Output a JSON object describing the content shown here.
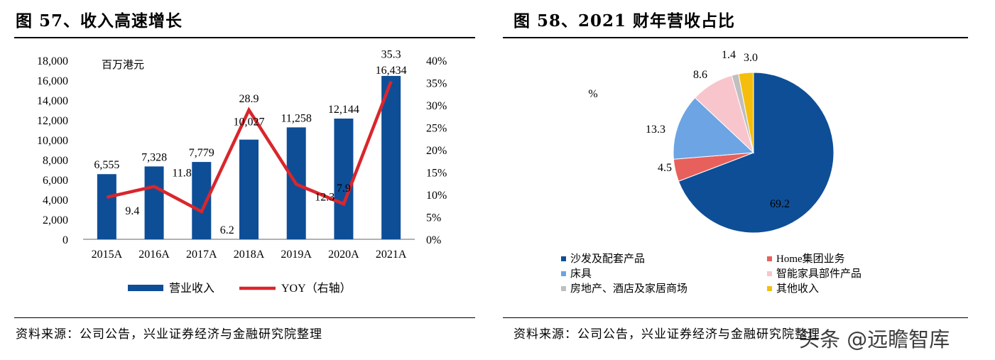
{
  "left": {
    "title": "图 57、收入高速增长",
    "source": "资料来源：公司公告，兴业证券经济与金融研究院整理"
  },
  "right": {
    "title": "图 58、2021 财年营收占比",
    "source": "资料来源：公司公告，兴业证券经济与金融研究院整理"
  },
  "watermark": "头条 @远瞻智库",
  "colors": {
    "bar": "#0E4E97",
    "line": "#D9262C",
    "pie": [
      "#0E4E97",
      "#E8605C",
      "#6DA4E3",
      "#F8C5CC",
      "#BFBFBF",
      "#F5BE0E"
    ]
  },
  "chart_data": [
    {
      "type": "bar",
      "categories": [
        "2015A",
        "2016A",
        "2017A",
        "2018A",
        "2019A",
        "2020A",
        "2021A"
      ],
      "series": [
        {
          "name": "营业收入",
          "type": "bar",
          "axis": "left",
          "values": [
            6555,
            7328,
            7779,
            10027,
            11258,
            12144,
            16434
          ],
          "labels": [
            "6,555",
            "7,328",
            "7,779",
            "10,027",
            "11,258",
            "12,144",
            "16,434"
          ]
        },
        {
          "name": "YOY（右轴）",
          "type": "line",
          "axis": "right",
          "values": [
            9.4,
            11.8,
            6.2,
            28.9,
            12.3,
            7.9,
            35.3
          ],
          "labels": [
            "9.4",
            "11.8",
            "6.2",
            "28.9",
            "12.3",
            "7.9",
            "35.3"
          ]
        }
      ],
      "unit_label": "百万港元",
      "ylim": [
        0,
        18000
      ],
      "yticks": [
        "0",
        "2,000",
        "4,000",
        "6,000",
        "8,000",
        "10,000",
        "12,000",
        "14,000",
        "16,000",
        "18,000"
      ],
      "y2lim": [
        0,
        40
      ],
      "y2ticks": [
        "0%",
        "5%",
        "10%",
        "15%",
        "20%",
        "25%",
        "30%",
        "35%",
        "40%"
      ],
      "legend": [
        "营业收入",
        "YOY（右轴）"
      ],
      "legend_position": "bottom"
    },
    {
      "type": "pie",
      "unit_label": "%",
      "labels": [
        "沙发及配套产品",
        "Home集团业务",
        "床具",
        "智能家具部件产品",
        "房地产、酒店及家居商场",
        "其他收入"
      ],
      "values": [
        69.2,
        4.5,
        13.3,
        8.6,
        1.4,
        3.0
      ],
      "value_labels": [
        "69.2",
        "4.5",
        "13.3",
        "8.6",
        "1.4",
        "3.0"
      ],
      "legend_position": "bottom"
    }
  ]
}
